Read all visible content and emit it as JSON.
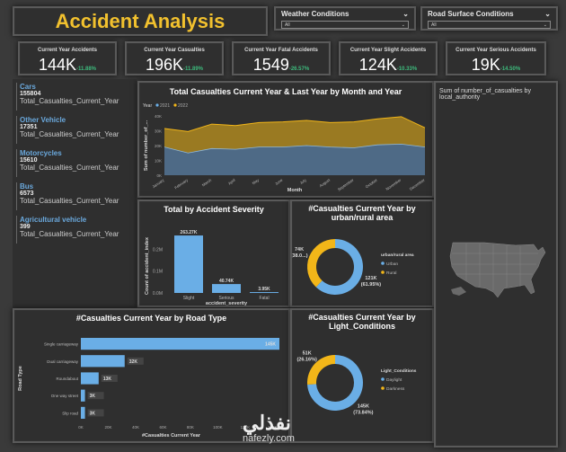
{
  "header": {
    "title": "Accident Analysis"
  },
  "slicers": [
    {
      "label": "Weather Conditions",
      "value": "All"
    },
    {
      "label": "Road Surface Conditions",
      "value": "All"
    }
  ],
  "kpis": [
    {
      "title": "Current Year Accidents",
      "value": "144K",
      "change": "-11.88%"
    },
    {
      "title": "Current Year Casualties",
      "value": "196K",
      "change": "-11.89%"
    },
    {
      "title": "Current Year Fatal Accidents",
      "value": "1549",
      "change": "-26.57%"
    },
    {
      "title": "Current Year Slight Accidents",
      "value": "124K",
      "change": "-10.33%"
    },
    {
      "title": "Current Year Serious Accidents",
      "value": "19K",
      "change": "-14.50%"
    }
  ],
  "vehicles": [
    {
      "name": "Cars",
      "value": "155804",
      "measure": "Total_Casualties_Current_Year"
    },
    {
      "name": "Other Vehicle",
      "value": "17351",
      "measure": "Total_Casualties_Current_Year"
    },
    {
      "name": "Motorcycles",
      "value": "15610",
      "measure": "Total_Casualties_Current_Year"
    },
    {
      "name": "Bus",
      "value": "6573",
      "measure": "Total_Casualties_Current_Year"
    },
    {
      "name": "Agricultural vehicle",
      "value": "399",
      "measure": "Total_Casualties_Current_Year"
    }
  ],
  "map": {
    "title": "Sum of number_of_casualties by local_authority"
  },
  "colors": {
    "blue": "#6aaee6",
    "gold": "#f2b619",
    "area2021": "#4e6a86",
    "area2022": "#9a7a22",
    "positive": "#3dba7c"
  },
  "watermark": {
    "arabic": "نفذلي",
    "latin": "nafezly.com"
  },
  "chart_data": [
    {
      "id": "monthly",
      "type": "area",
      "title": "Total Casualties Current Year & Last Year by Month and Year",
      "xlabel": "Month",
      "ylabel": "Sum of number_of_...",
      "legend_title": "Year",
      "legend_position": "top-left",
      "categories": [
        "January",
        "February",
        "March",
        "April",
        "May",
        "June",
        "July",
        "August",
        "September",
        "October",
        "November",
        "December"
      ],
      "yticks": [
        "0K",
        "10K",
        "20K",
        "30K",
        "40K"
      ],
      "ylim": [
        0,
        40000
      ],
      "series": [
        {
          "name": "2021",
          "values": [
            19000,
            15000,
            18000,
            17500,
            19000,
            19000,
            20000,
            19000,
            18500,
            20500,
            21000,
            19000
          ]
        },
        {
          "name": "2022",
          "values": [
            12500,
            14500,
            16500,
            16000,
            16500,
            17000,
            17000,
            16500,
            17500,
            17500,
            18500,
            13000
          ]
        }
      ],
      "stacked": true
    },
    {
      "id": "severity",
      "type": "bar",
      "title": "Total by Accident Severity",
      "xlabel": "accident_severity",
      "ylabel": "Count of accident_index",
      "categories": [
        "Slight",
        "Serious",
        "Fatal"
      ],
      "values": [
        263270,
        40740,
        3950
      ],
      "labels": [
        "263.27K",
        "40.74K",
        "3.95K"
      ],
      "yticks": [
        "0.0M",
        "0.1M",
        "0.2M"
      ],
      "ylim": [
        0,
        280000
      ]
    },
    {
      "id": "urban",
      "type": "pie",
      "title": "#Casualties Current Year by urban/rural area",
      "legend_title": "urban/rural area",
      "legend_position": "right",
      "slices": [
        {
          "name": "Urban",
          "value": 121000,
          "label": "121K",
          "pct": "(61.95%)"
        },
        {
          "name": "Rural",
          "value": 74000,
          "label": "74K",
          "pct": "(38.0...)"
        }
      ]
    },
    {
      "id": "roadtype",
      "type": "bar",
      "orientation": "horizontal",
      "title": "#Casualties Current Year by Road Type",
      "xlabel": "#Casualties Current Year",
      "ylabel": "Road Type",
      "categories": [
        "Single carriageway",
        "Dual carriageway",
        "Roundabout",
        "One way street",
        "Slip road"
      ],
      "values": [
        145000,
        32000,
        13000,
        3000,
        3000
      ],
      "labels": [
        "145K",
        "32K",
        "13K",
        "3K",
        "3K"
      ],
      "xticks": [
        "0K",
        "20K",
        "40K",
        "60K",
        "80K",
        "100K",
        "120K",
        "140K"
      ],
      "xlim": [
        0,
        145000
      ]
    },
    {
      "id": "light",
      "type": "pie",
      "title": "#Casualties Current Year by Light_Conditions",
      "legend_title": "Light_Conditions",
      "legend_position": "right",
      "slices": [
        {
          "name": "Daylight",
          "value": 145000,
          "label": "145K",
          "pct": "(73.84%)"
        },
        {
          "name": "Darkness",
          "value": 51000,
          "label": "51K",
          "pct": "(26.16%)"
        }
      ]
    }
  ]
}
